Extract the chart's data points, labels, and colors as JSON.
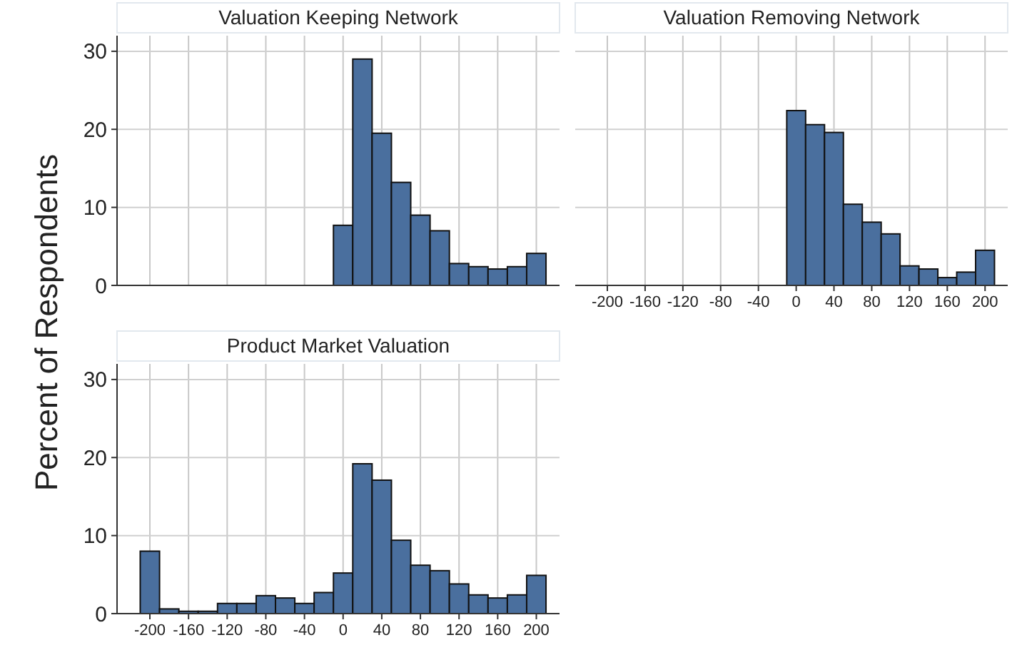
{
  "chart_data": [
    {
      "type": "histogram",
      "title": "Valuation Keeping Network",
      "bins": [
        -210,
        -190,
        -170,
        -150,
        -130,
        -110,
        -90,
        -70,
        -50,
        -30,
        -10,
        10,
        30,
        50,
        70,
        90,
        110,
        130,
        150,
        170,
        190,
        210
      ],
      "values": [
        0,
        0,
        0,
        0,
        0,
        0,
        0,
        0,
        0,
        0,
        7.7,
        29,
        19.5,
        13.2,
        9,
        7,
        2.8,
        2.4,
        2.1,
        2.4,
        4.1
      ],
      "color": "#4a6f9e",
      "xlim": [
        -234,
        224
      ],
      "xticks": [
        -200,
        -160,
        -120,
        -80,
        -40,
        0,
        40,
        80,
        120,
        160,
        200
      ],
      "ylim": [
        0,
        32
      ],
      "yticks": [
        0,
        10,
        20,
        30
      ],
      "grid": true,
      "tick_labels": "y"
    },
    {
      "type": "histogram",
      "title": "Valuation Removing Network",
      "bins": [
        -210,
        -190,
        -170,
        -150,
        -130,
        -110,
        -90,
        -70,
        -50,
        -30,
        -10,
        10,
        30,
        50,
        70,
        90,
        110,
        130,
        150,
        170,
        190,
        210
      ],
      "values": [
        0,
        0,
        0,
        0,
        0,
        0,
        0,
        0,
        0,
        0,
        22.4,
        20.6,
        19.6,
        10.4,
        8.1,
        6.6,
        2.5,
        2.1,
        1.0,
        1.7,
        4.5
      ],
      "color": "#4a6f9e",
      "xlim": [
        -234,
        224
      ],
      "xticks": [
        -200,
        -160,
        -120,
        -80,
        -40,
        0,
        40,
        80,
        120,
        160,
        200
      ],
      "ylim": [
        0,
        32
      ],
      "yticks": [
        0,
        10,
        20,
        30
      ],
      "grid": true,
      "tick_labels": "x"
    },
    {
      "type": "histogram",
      "title": "Product Market Valuation",
      "ylabel": "Percent of Respondents",
      "bins": [
        -210,
        -190,
        -170,
        -150,
        -130,
        -110,
        -90,
        -70,
        -50,
        -30,
        -10,
        10,
        30,
        50,
        70,
        90,
        110,
        130,
        150,
        170,
        190,
        210
      ],
      "values": [
        8.0,
        0.6,
        0.3,
        0.3,
        1.3,
        1.3,
        2.3,
        2.0,
        1.3,
        2.7,
        5.2,
        19.2,
        17.1,
        9.4,
        6.2,
        5.5,
        3.8,
        2.4,
        2.0,
        2.4,
        4.9
      ],
      "color": "#4a6f9e",
      "xlim": [
        -234,
        224
      ],
      "xticks": [
        -200,
        -160,
        -120,
        -80,
        -40,
        0,
        40,
        80,
        120,
        160,
        200
      ],
      "ylim": [
        0,
        32
      ],
      "yticks": [
        0,
        10,
        20,
        30
      ],
      "grid": true
    }
  ]
}
